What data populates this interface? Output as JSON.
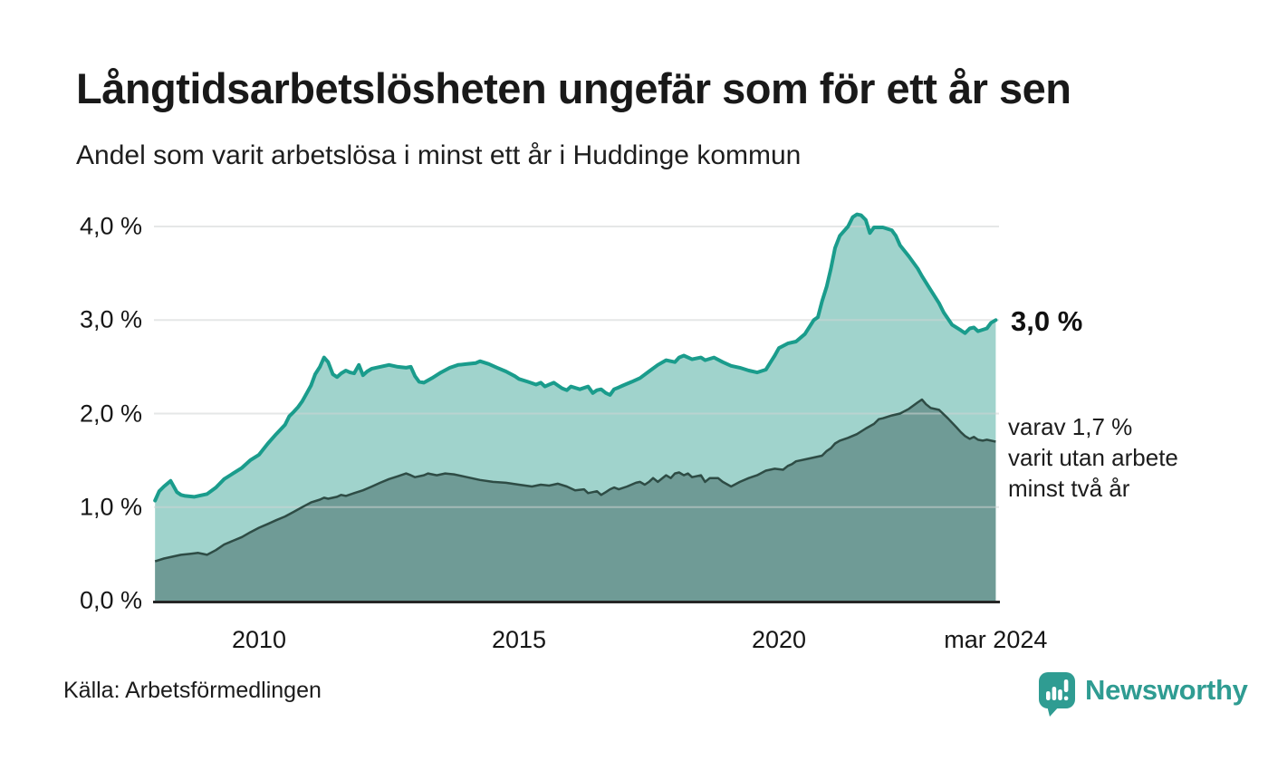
{
  "header": {
    "title": "Långtidsarbetslösheten ungefär som för ett år sen",
    "subtitle": "Andel som varit arbetslösa i minst ett år i Huddinge kommun"
  },
  "chart_data": {
    "type": "area",
    "title": "Långtidsarbetslösheten ungefär som för ett år sen",
    "subtitle": "Andel som varit arbetslösa i minst ett år i Huddinge kommun",
    "unit": "%",
    "grid": true,
    "x_range": [
      2008,
      2024.25
    ],
    "y_range": [
      0,
      4.35
    ],
    "y_ticks": [
      {
        "label": "0,0 %",
        "value": 0
      },
      {
        "label": "1,0 %",
        "value": 1
      },
      {
        "label": "2,0 %",
        "value": 2
      },
      {
        "label": "3,0 %",
        "value": 3
      },
      {
        "label": "4,0 %",
        "value": 4
      }
    ],
    "x_ticks": [
      {
        "label": "2010",
        "value": 2010
      },
      {
        "label": "2015",
        "value": 2015
      },
      {
        "label": "2020",
        "value": 2020
      },
      {
        "label": "mar 2024",
        "value": 2024.17
      }
    ],
    "series": [
      {
        "name": "Andel som varit arbetslösa minst ett år",
        "line_color": "#1a9c8c",
        "fill_color": "#a0d3cc",
        "latest_value": "3,0 %",
        "points": [
          [
            2008.0,
            1.07
          ],
          [
            2008.08,
            1.17
          ],
          [
            2008.17,
            1.22
          ],
          [
            2008.3,
            1.28
          ],
          [
            2008.42,
            1.16
          ],
          [
            2008.5,
            1.13
          ],
          [
            2008.58,
            1.12
          ],
          [
            2008.75,
            1.11
          ],
          [
            2008.92,
            1.13
          ],
          [
            2009.0,
            1.14
          ],
          [
            2009.17,
            1.21
          ],
          [
            2009.33,
            1.3
          ],
          [
            2009.5,
            1.36
          ],
          [
            2009.67,
            1.42
          ],
          [
            2009.83,
            1.5
          ],
          [
            2010.0,
            1.56
          ],
          [
            2010.17,
            1.68
          ],
          [
            2010.33,
            1.78
          ],
          [
            2010.5,
            1.88
          ],
          [
            2010.58,
            1.97
          ],
          [
            2010.67,
            2.02
          ],
          [
            2010.75,
            2.07
          ],
          [
            2010.83,
            2.13
          ],
          [
            2010.92,
            2.22
          ],
          [
            2011.0,
            2.3
          ],
          [
            2011.08,
            2.42
          ],
          [
            2011.17,
            2.5
          ],
          [
            2011.25,
            2.6
          ],
          [
            2011.33,
            2.55
          ],
          [
            2011.42,
            2.42
          ],
          [
            2011.5,
            2.39
          ],
          [
            2011.58,
            2.43
          ],
          [
            2011.67,
            2.46
          ],
          [
            2011.75,
            2.44
          ],
          [
            2011.83,
            2.43
          ],
          [
            2011.92,
            2.52
          ],
          [
            2012.0,
            2.41
          ],
          [
            2012.08,
            2.45
          ],
          [
            2012.17,
            2.48
          ],
          [
            2012.33,
            2.5
          ],
          [
            2012.5,
            2.52
          ],
          [
            2012.67,
            2.5
          ],
          [
            2012.83,
            2.49
          ],
          [
            2012.92,
            2.5
          ],
          [
            2013.0,
            2.4
          ],
          [
            2013.08,
            2.34
          ],
          [
            2013.17,
            2.33
          ],
          [
            2013.33,
            2.38
          ],
          [
            2013.5,
            2.44
          ],
          [
            2013.67,
            2.49
          ],
          [
            2013.83,
            2.52
          ],
          [
            2014.0,
            2.53
          ],
          [
            2014.17,
            2.54
          ],
          [
            2014.25,
            2.56
          ],
          [
            2014.42,
            2.53
          ],
          [
            2014.58,
            2.49
          ],
          [
            2014.75,
            2.45
          ],
          [
            2014.92,
            2.4
          ],
          [
            2015.0,
            2.37
          ],
          [
            2015.17,
            2.34
          ],
          [
            2015.33,
            2.31
          ],
          [
            2015.42,
            2.33
          ],
          [
            2015.5,
            2.29
          ],
          [
            2015.58,
            2.31
          ],
          [
            2015.67,
            2.33
          ],
          [
            2015.75,
            2.3
          ],
          [
            2015.83,
            2.27
          ],
          [
            2015.92,
            2.25
          ],
          [
            2016.0,
            2.29
          ],
          [
            2016.17,
            2.26
          ],
          [
            2016.33,
            2.29
          ],
          [
            2016.42,
            2.22
          ],
          [
            2016.5,
            2.25
          ],
          [
            2016.58,
            2.26
          ],
          [
            2016.67,
            2.22
          ],
          [
            2016.75,
            2.2
          ],
          [
            2016.83,
            2.26
          ],
          [
            2016.92,
            2.28
          ],
          [
            2017.0,
            2.3
          ],
          [
            2017.17,
            2.34
          ],
          [
            2017.33,
            2.38
          ],
          [
            2017.5,
            2.45
          ],
          [
            2017.67,
            2.52
          ],
          [
            2017.83,
            2.57
          ],
          [
            2018.0,
            2.55
          ],
          [
            2018.08,
            2.6
          ],
          [
            2018.17,
            2.62
          ],
          [
            2018.33,
            2.58
          ],
          [
            2018.5,
            2.6
          ],
          [
            2018.58,
            2.57
          ],
          [
            2018.75,
            2.6
          ],
          [
            2018.92,
            2.55
          ],
          [
            2019.08,
            2.51
          ],
          [
            2019.25,
            2.49
          ],
          [
            2019.42,
            2.46
          ],
          [
            2019.58,
            2.44
          ],
          [
            2019.75,
            2.47
          ],
          [
            2019.83,
            2.54
          ],
          [
            2019.92,
            2.62
          ],
          [
            2020.0,
            2.7
          ],
          [
            2020.17,
            2.75
          ],
          [
            2020.33,
            2.77
          ],
          [
            2020.5,
            2.85
          ],
          [
            2020.67,
            3.0
          ],
          [
            2020.75,
            3.03
          ],
          [
            2020.83,
            3.2
          ],
          [
            2020.92,
            3.36
          ],
          [
            2021.0,
            3.55
          ],
          [
            2021.08,
            3.77
          ],
          [
            2021.17,
            3.9
          ],
          [
            2021.33,
            4.0
          ],
          [
            2021.42,
            4.1
          ],
          [
            2021.5,
            4.13
          ],
          [
            2021.58,
            4.12
          ],
          [
            2021.67,
            4.07
          ],
          [
            2021.75,
            3.93
          ],
          [
            2021.83,
            3.99
          ],
          [
            2022.0,
            3.99
          ],
          [
            2022.17,
            3.96
          ],
          [
            2022.25,
            3.9
          ],
          [
            2022.33,
            3.8
          ],
          [
            2022.5,
            3.68
          ],
          [
            2022.67,
            3.55
          ],
          [
            2022.75,
            3.47
          ],
          [
            2022.92,
            3.32
          ],
          [
            2023.08,
            3.18
          ],
          [
            2023.17,
            3.08
          ],
          [
            2023.33,
            2.95
          ],
          [
            2023.5,
            2.89
          ],
          [
            2023.58,
            2.86
          ],
          [
            2023.67,
            2.91
          ],
          [
            2023.75,
            2.92
          ],
          [
            2023.83,
            2.88
          ],
          [
            2024.0,
            2.91
          ],
          [
            2024.08,
            2.97
          ],
          [
            2024.17,
            3.0
          ]
        ]
      },
      {
        "name": "varav utan arbete minst två år",
        "line_color": "#2e4c45",
        "fill_color": "#6f9b96",
        "latest_value": "1,7 %",
        "points": [
          [
            2008.0,
            0.42
          ],
          [
            2008.17,
            0.45
          ],
          [
            2008.33,
            0.47
          ],
          [
            2008.5,
            0.49
          ],
          [
            2008.67,
            0.5
          ],
          [
            2008.83,
            0.51
          ],
          [
            2008.92,
            0.5
          ],
          [
            2009.0,
            0.49
          ],
          [
            2009.17,
            0.54
          ],
          [
            2009.33,
            0.6
          ],
          [
            2009.5,
            0.64
          ],
          [
            2009.67,
            0.68
          ],
          [
            2009.83,
            0.73
          ],
          [
            2010.0,
            0.78
          ],
          [
            2010.17,
            0.82
          ],
          [
            2010.33,
            0.86
          ],
          [
            2010.5,
            0.9
          ],
          [
            2010.67,
            0.95
          ],
          [
            2010.83,
            1.0
          ],
          [
            2011.0,
            1.05
          ],
          [
            2011.17,
            1.08
          ],
          [
            2011.25,
            1.1
          ],
          [
            2011.33,
            1.09
          ],
          [
            2011.5,
            1.11
          ],
          [
            2011.58,
            1.13
          ],
          [
            2011.67,
            1.12
          ],
          [
            2011.83,
            1.15
          ],
          [
            2012.0,
            1.18
          ],
          [
            2012.17,
            1.22
          ],
          [
            2012.33,
            1.26
          ],
          [
            2012.5,
            1.3
          ],
          [
            2012.67,
            1.33
          ],
          [
            2012.83,
            1.36
          ],
          [
            2012.92,
            1.34
          ],
          [
            2013.0,
            1.32
          ],
          [
            2013.17,
            1.34
          ],
          [
            2013.25,
            1.36
          ],
          [
            2013.42,
            1.34
          ],
          [
            2013.58,
            1.36
          ],
          [
            2013.75,
            1.35
          ],
          [
            2013.92,
            1.33
          ],
          [
            2014.08,
            1.31
          ],
          [
            2014.25,
            1.29
          ],
          [
            2014.5,
            1.27
          ],
          [
            2014.75,
            1.26
          ],
          [
            2015.0,
            1.24
          ],
          [
            2015.25,
            1.22
          ],
          [
            2015.42,
            1.24
          ],
          [
            2015.58,
            1.23
          ],
          [
            2015.75,
            1.25
          ],
          [
            2015.92,
            1.22
          ],
          [
            2016.08,
            1.18
          ],
          [
            2016.25,
            1.19
          ],
          [
            2016.33,
            1.15
          ],
          [
            2016.5,
            1.17
          ],
          [
            2016.58,
            1.13
          ],
          [
            2016.67,
            1.16
          ],
          [
            2016.75,
            1.19
          ],
          [
            2016.83,
            1.21
          ],
          [
            2016.92,
            1.19
          ],
          [
            2017.08,
            1.22
          ],
          [
            2017.25,
            1.26
          ],
          [
            2017.33,
            1.27
          ],
          [
            2017.42,
            1.24
          ],
          [
            2017.5,
            1.27
          ],
          [
            2017.58,
            1.31
          ],
          [
            2017.67,
            1.27
          ],
          [
            2017.83,
            1.34
          ],
          [
            2017.92,
            1.31
          ],
          [
            2018.0,
            1.36
          ],
          [
            2018.08,
            1.37
          ],
          [
            2018.17,
            1.34
          ],
          [
            2018.25,
            1.36
          ],
          [
            2018.33,
            1.32
          ],
          [
            2018.5,
            1.34
          ],
          [
            2018.58,
            1.27
          ],
          [
            2018.67,
            1.31
          ],
          [
            2018.83,
            1.31
          ],
          [
            2018.92,
            1.27
          ],
          [
            2019.08,
            1.22
          ],
          [
            2019.25,
            1.27
          ],
          [
            2019.42,
            1.31
          ],
          [
            2019.58,
            1.34
          ],
          [
            2019.75,
            1.39
          ],
          [
            2019.92,
            1.41
          ],
          [
            2020.08,
            1.4
          ],
          [
            2020.17,
            1.44
          ],
          [
            2020.25,
            1.46
          ],
          [
            2020.33,
            1.49
          ],
          [
            2020.5,
            1.51
          ],
          [
            2020.67,
            1.53
          ],
          [
            2020.83,
            1.55
          ],
          [
            2020.92,
            1.6
          ],
          [
            2021.0,
            1.63
          ],
          [
            2021.08,
            1.68
          ],
          [
            2021.17,
            1.71
          ],
          [
            2021.33,
            1.74
          ],
          [
            2021.5,
            1.78
          ],
          [
            2021.67,
            1.84
          ],
          [
            2021.83,
            1.89
          ],
          [
            2021.92,
            1.94
          ],
          [
            2022.0,
            1.95
          ],
          [
            2022.17,
            1.98
          ],
          [
            2022.33,
            2.0
          ],
          [
            2022.5,
            2.05
          ],
          [
            2022.67,
            2.12
          ],
          [
            2022.75,
            2.15
          ],
          [
            2022.83,
            2.1
          ],
          [
            2022.92,
            2.06
          ],
          [
            2023.08,
            2.04
          ],
          [
            2023.25,
            1.95
          ],
          [
            2023.42,
            1.85
          ],
          [
            2023.5,
            1.8
          ],
          [
            2023.58,
            1.76
          ],
          [
            2023.67,
            1.73
          ],
          [
            2023.75,
            1.75
          ],
          [
            2023.83,
            1.72
          ],
          [
            2023.92,
            1.71
          ],
          [
            2024.0,
            1.72
          ],
          [
            2024.08,
            1.71
          ],
          [
            2024.17,
            1.7
          ]
        ]
      }
    ],
    "annotations": {
      "end_label": "3,0 %",
      "lines": [
        "varav 1,7 %",
        "varit utan arbete",
        "minst två år"
      ]
    },
    "legend": "none",
    "colors": {
      "accent_teal": "#1a9c8c",
      "light_fill": "#a0d3cc",
      "dark_fill": "#6f9b96",
      "dark_line": "#2e4c45",
      "gridline": "#e0e4e3",
      "axis_line": "#262626",
      "brand_teal": "#2f9c92"
    }
  },
  "footer": {
    "source": "Källa: Arbetsförmedlingen",
    "brand": "Newsworthy"
  }
}
